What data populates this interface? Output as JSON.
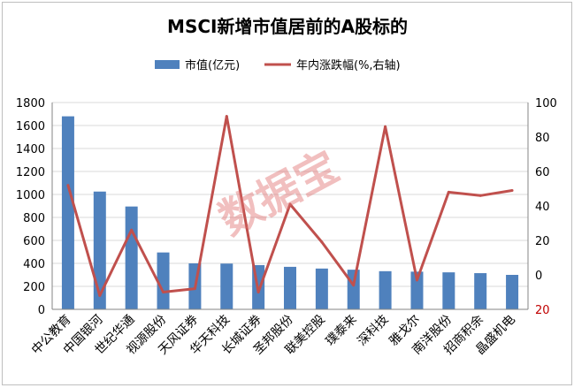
{
  "chart_data": {
    "type": "bar",
    "title": "MSCI新增市值居前的A股标的",
    "categories": [
      "中公教育",
      "中国银河",
      "世纪华通",
      "视源股份",
      "天风证券",
      "华天科技",
      "长城证券",
      "圣邦股份",
      "联美控股",
      "璞泰来",
      "深科技",
      "雅戈尔",
      "南洋股份",
      "招商积余",
      "晶盛机电"
    ],
    "series": [
      {
        "name": "市值(亿元)",
        "type": "bar",
        "axis": "left",
        "color": "#4f81bd",
        "values": [
          1680,
          1025,
          895,
          495,
          400,
          398,
          385,
          370,
          355,
          345,
          332,
          328,
          322,
          315,
          300
        ]
      },
      {
        "name": "年内涨跌幅(%,右轴)",
        "type": "line",
        "axis": "right",
        "color": "#c0504d",
        "values": [
          52,
          -12,
          26,
          -10,
          -8,
          92,
          -10,
          41,
          19,
          -6,
          86,
          -3,
          48,
          46,
          49
        ]
      }
    ],
    "y_left": {
      "min": 0,
      "max": 1800,
      "ticks": [
        0,
        200,
        400,
        600,
        800,
        1000,
        1200,
        1400,
        1600,
        1800
      ]
    },
    "y_right": {
      "min": -20,
      "max": 100,
      "ticks": [
        -20,
        0,
        20,
        40,
        60,
        80,
        100
      ],
      "tick_labels": [
        "20",
        "0",
        "20",
        "40",
        "60",
        "80",
        "100"
      ],
      "negative_color": "#c00000"
    },
    "grid": true,
    "legend_position": "top",
    "watermark": "数据宝"
  }
}
